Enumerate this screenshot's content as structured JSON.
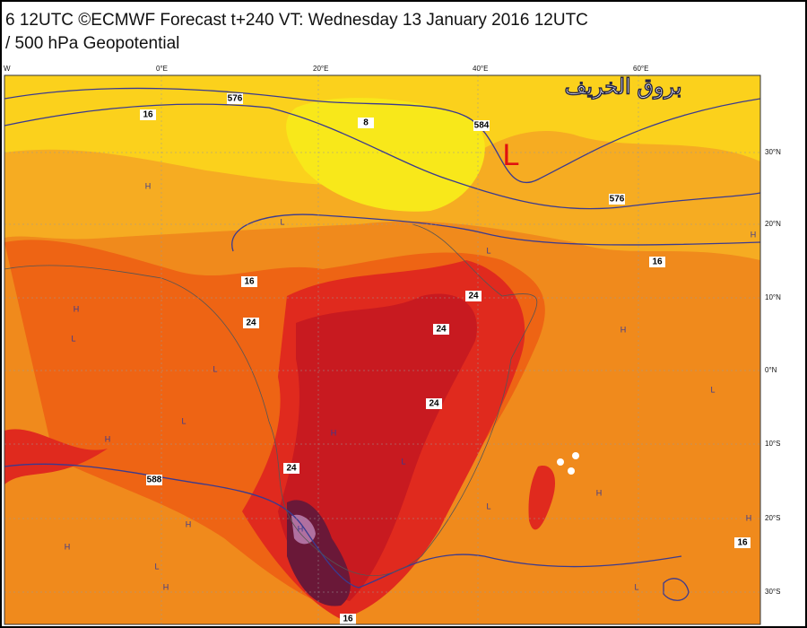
{
  "header": {
    "line1": "6 12UTC ©ECMWF Forecast t+240 VT: Wednesday 13 January 2016 12UTC",
    "line2": "/ 500 hPa Geopotential"
  },
  "watermark": "بروق الخريف",
  "longitude_labels": [
    "W",
    "0°E",
    "20°E",
    "40°E",
    "60°E"
  ],
  "latitude_labels": [
    "30°N",
    "20°N",
    "10°N",
    "0°N",
    "10°S",
    "20°S",
    "30°S"
  ],
  "low_center": "L",
  "contour_labels": [
    "16",
    "576",
    "8",
    "584",
    "576",
    "16",
    "16",
    "24",
    "24",
    "24",
    "24",
    "24",
    "16",
    "588",
    "16"
  ],
  "pressure_markers": [
    "H",
    "H",
    "H",
    "H",
    "H",
    "H",
    "H",
    "H",
    "H",
    "H",
    "H",
    "H",
    "L",
    "L",
    "L",
    "L",
    "L",
    "L",
    "L",
    "L",
    "L",
    "L"
  ]
}
